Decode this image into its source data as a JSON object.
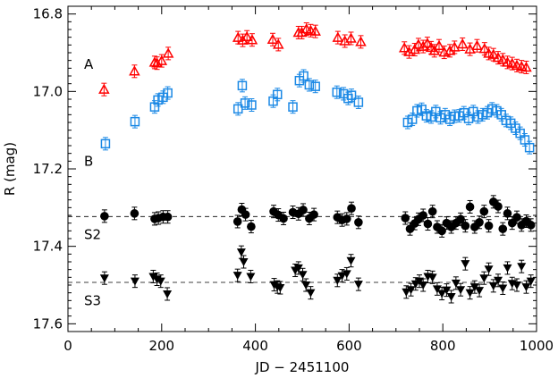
{
  "chart_data": {
    "type": "scatter",
    "title": "",
    "xlabel": "JD − 2451100",
    "ylabel": "R (mag)",
    "xlim": [
      0,
      1000
    ],
    "ylim": [
      17.62,
      16.78
    ],
    "y_inverted": true,
    "grid": false,
    "legend": "none",
    "x_ticks": [
      0,
      200,
      400,
      600,
      800,
      1000
    ],
    "y_ticks": [
      16.8,
      17.0,
      17.2,
      17.4,
      17.6
    ],
    "x_tick_labels": [
      "0",
      "200",
      "400",
      "600",
      "800",
      "1000"
    ],
    "y_tick_labels": [
      "16.8",
      "17.0",
      "17.2",
      "17.4",
      "17.6"
    ],
    "reference_lines": [
      {
        "series": "S2",
        "y": 17.323
      },
      {
        "series": "S3",
        "y": 17.493
      }
    ],
    "series": [
      {
        "name": "A",
        "marker": "triangle-up-open",
        "color": "#ff0000",
        "label_y": 16.93,
        "x": [
          77,
          142,
          185,
          190,
          200,
          214,
          363,
          373,
          382,
          393,
          437,
          449,
          492,
          499,
          509,
          518,
          528,
          576,
          591,
          604,
          625,
          718,
          728,
          740,
          748,
          758,
          767,
          775,
          782,
          792,
          803,
          815,
          825,
          842,
          858,
          873,
          889,
          898,
          908,
          918,
          928,
          938,
          948,
          958,
          968,
          978
        ],
        "y": [
          16.995,
          16.948,
          16.925,
          16.927,
          16.921,
          16.902,
          16.861,
          16.868,
          16.859,
          16.867,
          16.866,
          16.879,
          16.848,
          16.848,
          16.839,
          16.843,
          16.845,
          16.861,
          16.87,
          16.863,
          16.872,
          16.888,
          16.898,
          16.892,
          16.879,
          16.884,
          16.876,
          16.887,
          16.895,
          16.882,
          16.899,
          16.895,
          16.886,
          16.878,
          16.891,
          16.882,
          16.89,
          16.902,
          16.905,
          16.913,
          16.918,
          16.925,
          16.928,
          16.933,
          16.936,
          16.938
        ]
      },
      {
        "name": "B",
        "marker": "square-open",
        "color": "#1a88e5",
        "label_y": 17.18,
        "x": [
          80,
          143,
          185,
          192,
          203,
          213,
          363,
          372,
          378,
          392,
          438,
          447,
          480,
          494,
          503,
          515,
          528,
          574,
          588,
          598,
          605,
          620,
          725,
          735,
          745,
          755,
          765,
          775,
          785,
          795,
          805,
          815,
          825,
          835,
          845,
          855,
          865,
          875,
          885,
          895,
          905,
          915,
          925,
          935,
          945,
          955,
          965,
          975,
          985
        ],
        "y": [
          17.135,
          17.078,
          17.04,
          17.022,
          17.015,
          17.004,
          17.045,
          16.985,
          17.03,
          17.035,
          17.025,
          17.008,
          17.04,
          16.972,
          16.96,
          16.983,
          16.987,
          17.002,
          17.006,
          17.018,
          17.01,
          17.028,
          17.08,
          17.072,
          17.05,
          17.046,
          17.063,
          17.066,
          17.052,
          17.068,
          17.06,
          17.072,
          17.064,
          17.063,
          17.055,
          17.07,
          17.052,
          17.066,
          17.06,
          17.055,
          17.045,
          17.05,
          17.06,
          17.075,
          17.082,
          17.095,
          17.108,
          17.125,
          17.145
        ]
      },
      {
        "name": "S2",
        "marker": "circle-filled",
        "color": "#000000",
        "label_y": 17.37,
        "x": [
          78,
          142,
          185,
          193,
          203,
          213,
          362,
          371,
          379,
          391,
          439,
          449,
          460,
          480,
          492,
          502,
          515,
          525,
          575,
          585,
          595,
          605,
          620,
          720,
          730,
          740,
          748,
          758,
          768,
          778,
          788,
          798,
          808,
          818,
          828,
          838,
          848,
          858,
          868,
          878,
          888,
          898,
          908,
          918,
          928,
          938,
          948,
          958,
          968,
          978,
          988
        ],
        "y": [
          17.322,
          17.315,
          17.329,
          17.327,
          17.324,
          17.324,
          17.336,
          17.305,
          17.318,
          17.349,
          17.31,
          17.319,
          17.328,
          17.312,
          17.316,
          17.306,
          17.328,
          17.318,
          17.325,
          17.332,
          17.329,
          17.302,
          17.338,
          17.327,
          17.355,
          17.341,
          17.33,
          17.32,
          17.342,
          17.31,
          17.35,
          17.36,
          17.34,
          17.35,
          17.34,
          17.33,
          17.347,
          17.298,
          17.35,
          17.338,
          17.31,
          17.347,
          17.285,
          17.297,
          17.355,
          17.315,
          17.34,
          17.325,
          17.345,
          17.335,
          17.345
        ]
      },
      {
        "name": "S3",
        "marker": "triangle-down-filled",
        "color": "#000000",
        "label_y": 17.54,
        "x": [
          78,
          143,
          182,
          190,
          198,
          212,
          362,
          370,
          375,
          390,
          440,
          447,
          453,
          485,
          492,
          501,
          508,
          518,
          575,
          585,
          595,
          604,
          620,
          722,
          732,
          742,
          750,
          758,
          768,
          778,
          788,
          798,
          808,
          818,
          828,
          838,
          848,
          858,
          868,
          878,
          888,
          898,
          908,
          918,
          928,
          938,
          948,
          958,
          968,
          978,
          988
        ],
        "y": [
          17.482,
          17.49,
          17.478,
          17.485,
          17.49,
          17.523,
          17.475,
          17.415,
          17.44,
          17.478,
          17.499,
          17.505,
          17.507,
          17.462,
          17.456,
          17.473,
          17.5,
          17.52,
          17.488,
          17.476,
          17.471,
          17.437,
          17.498,
          17.518,
          17.512,
          17.497,
          17.49,
          17.5,
          17.478,
          17.48,
          17.51,
          17.522,
          17.513,
          17.53,
          17.495,
          17.512,
          17.445,
          17.52,
          17.505,
          17.514,
          17.482,
          17.459,
          17.502,
          17.488,
          17.508,
          17.456,
          17.496,
          17.5,
          17.452,
          17.505,
          17.49
        ]
      }
    ]
  }
}
